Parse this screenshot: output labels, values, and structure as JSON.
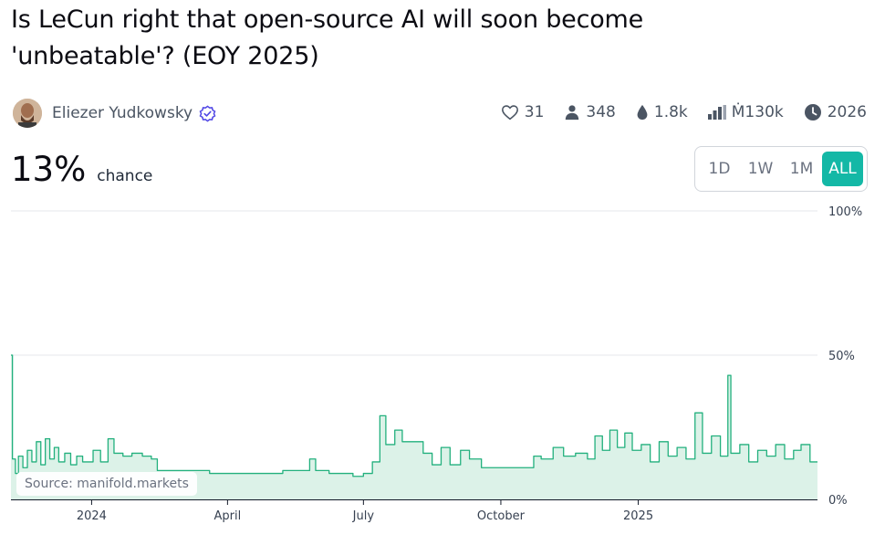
{
  "market": {
    "title": "Is LeCun right that open-source AI will soon become 'unbeatable'? (EOY 2025)",
    "author": "Eliezer Yudkowsky",
    "probability": "13%",
    "probability_label": "chance"
  },
  "stats": {
    "likes": "31",
    "traders": "348",
    "liquidity": "1.8k",
    "volume": "Ṁ130k",
    "close": "2026"
  },
  "range": {
    "options": [
      "1D",
      "1W",
      "1M",
      "ALL"
    ],
    "selected": "ALL"
  },
  "source": "Source: manifold.markets",
  "colors": {
    "accent": "#14b8a6",
    "line": "#22b07d",
    "fill": "#dcf2e8"
  },
  "icons": [
    "avatar",
    "verified-badge-icon",
    "heart-icon",
    "user-icon",
    "droplet-icon",
    "bar-chart-icon",
    "clock-icon"
  ],
  "chart_data": {
    "type": "area",
    "ylim": [
      0,
      100
    ],
    "ytick_labels": [
      "100%",
      "50%",
      "0%"
    ],
    "xtick_labels": [
      "2024",
      "April",
      "July",
      "October",
      "2025"
    ],
    "grid": true,
    "x_start": "2023-11-08",
    "x_end": "2025-05-01",
    "xtick_dates": [
      "2024-01-01",
      "2024-04-01",
      "2024-07-01",
      "2024-10-01",
      "2025-01-01"
    ],
    "points": [
      [
        "2023-11-08",
        50
      ],
      [
        "2023-11-09",
        14
      ],
      [
        "2023-11-11",
        9
      ],
      [
        "2023-11-13",
        15
      ],
      [
        "2023-11-16",
        11
      ],
      [
        "2023-11-19",
        17
      ],
      [
        "2023-11-22",
        13
      ],
      [
        "2023-11-25",
        20
      ],
      [
        "2023-11-28",
        12
      ],
      [
        "2023-12-01",
        21
      ],
      [
        "2023-12-04",
        14
      ],
      [
        "2023-12-07",
        18
      ],
      [
        "2023-12-10",
        13
      ],
      [
        "2023-12-14",
        16
      ],
      [
        "2023-12-18",
        12
      ],
      [
        "2023-12-22",
        15
      ],
      [
        "2023-12-26",
        13
      ],
      [
        "2024-01-02",
        17
      ],
      [
        "2024-01-07",
        13
      ],
      [
        "2024-01-12",
        21
      ],
      [
        "2024-01-16",
        16
      ],
      [
        "2024-01-22",
        15
      ],
      [
        "2024-01-28",
        16
      ],
      [
        "2024-02-04",
        15
      ],
      [
        "2024-02-10",
        14
      ],
      [
        "2024-02-14",
        10
      ],
      [
        "2024-02-24",
        10
      ],
      [
        "2024-03-20",
        9
      ],
      [
        "2024-04-20",
        9
      ],
      [
        "2024-05-08",
        10
      ],
      [
        "2024-05-22",
        10
      ],
      [
        "2024-05-26",
        14
      ],
      [
        "2024-05-30",
        10
      ],
      [
        "2024-06-08",
        9
      ],
      [
        "2024-06-24",
        8
      ],
      [
        "2024-07-01",
        9
      ],
      [
        "2024-07-07",
        13
      ],
      [
        "2024-07-12",
        29
      ],
      [
        "2024-07-16",
        19
      ],
      [
        "2024-07-22",
        24
      ],
      [
        "2024-07-27",
        20
      ],
      [
        "2024-08-04",
        20
      ],
      [
        "2024-08-10",
        16
      ],
      [
        "2024-08-16",
        12
      ],
      [
        "2024-08-22",
        18
      ],
      [
        "2024-08-28",
        12
      ],
      [
        "2024-09-04",
        17
      ],
      [
        "2024-09-10",
        14
      ],
      [
        "2024-09-18",
        11
      ],
      [
        "2024-10-05",
        11
      ],
      [
        "2024-10-18",
        11
      ],
      [
        "2024-10-23",
        15
      ],
      [
        "2024-10-28",
        14
      ],
      [
        "2024-11-05",
        18
      ],
      [
        "2024-11-12",
        15
      ],
      [
        "2024-11-20",
        16
      ],
      [
        "2024-11-28",
        14
      ],
      [
        "2024-12-03",
        22
      ],
      [
        "2024-12-08",
        17
      ],
      [
        "2024-12-13",
        24
      ],
      [
        "2024-12-18",
        18
      ],
      [
        "2024-12-23",
        23
      ],
      [
        "2024-12-28",
        17
      ],
      [
        "2025-01-03",
        19
      ],
      [
        "2025-01-09",
        13
      ],
      [
        "2025-01-15",
        20
      ],
      [
        "2025-01-21",
        15
      ],
      [
        "2025-01-27",
        18
      ],
      [
        "2025-02-02",
        14
      ],
      [
        "2025-02-08",
        30
      ],
      [
        "2025-02-13",
        16
      ],
      [
        "2025-02-19",
        22
      ],
      [
        "2025-02-25",
        15
      ],
      [
        "2025-03-02",
        43
      ],
      [
        "2025-03-04",
        16
      ],
      [
        "2025-03-10",
        19
      ],
      [
        "2025-03-16",
        13
      ],
      [
        "2025-03-22",
        17
      ],
      [
        "2025-03-28",
        15
      ],
      [
        "2025-04-03",
        19
      ],
      [
        "2025-04-09",
        14
      ],
      [
        "2025-04-15",
        17
      ],
      [
        "2025-04-20",
        19
      ],
      [
        "2025-04-26",
        13
      ],
      [
        "2025-05-01",
        13
      ]
    ]
  }
}
